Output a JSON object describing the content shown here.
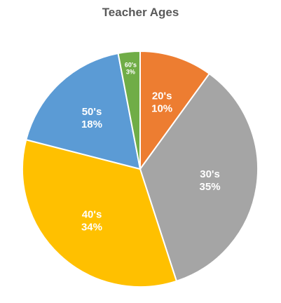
{
  "chart_data": {
    "type": "pie",
    "title": "Teacher Ages",
    "categories": [
      "20's",
      "30's",
      "40's",
      "50's",
      "60's"
    ],
    "values": [
      10,
      35,
      34,
      18,
      3
    ],
    "value_labels": [
      "10%",
      "35%",
      "34%",
      "18%",
      "3%"
    ],
    "colors": [
      "#ED7D31",
      "#A5A5A5",
      "#FFC000",
      "#5B9BD5",
      "#70AD47"
    ],
    "start_angle_deg": 0,
    "direction": "clockwise",
    "legend": "none",
    "data_labels": "inside"
  }
}
